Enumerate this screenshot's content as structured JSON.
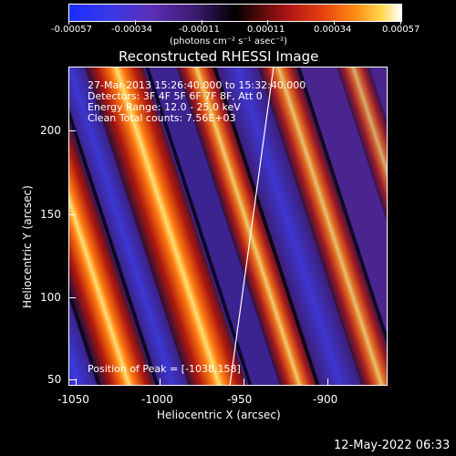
{
  "colorbar": {
    "tick_labels": [
      "-0.00057",
      "-0.00034",
      "-0.00011",
      "0.00011",
      "0.00034",
      "0.00057"
    ],
    "units": "(photons cm⁻² s⁻¹ asec⁻²)"
  },
  "plot": {
    "title": "Reconstructed RHESSI Image",
    "xlabel": "Heliocentric X (arcsec)",
    "ylabel": "Heliocentric Y (arcsec)",
    "x_ticks": [
      "-1050",
      "-1000",
      "-950",
      "-900"
    ],
    "y_ticks": [
      "200",
      "150",
      "100",
      "50"
    ],
    "info_lines": [
      "27-Mar-2013 15:26:40.000 to 15:32:40.000",
      "Detectors: 3F 4F 5F 6F 7F 8F, Att 0",
      "Energy Range: 12.0 - 25.0 keV",
      "Clean    Total counts: 7.56E+03"
    ],
    "peak_label": "Position of Peak = [-1038,158]"
  },
  "footer": {
    "timestamp": "12-May-2022 06:33"
  },
  "colors": {
    "background": "#000000",
    "colormap_low": "#1e3cff",
    "colormap_mid": "#000000",
    "colormap_high": "#ffffff"
  }
}
